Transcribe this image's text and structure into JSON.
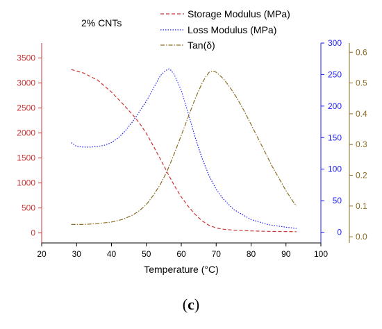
{
  "panel_label_open": "(",
  "panel_label_letter": "c",
  "panel_label_close": ")",
  "colors": {
    "storage": "#cc3333",
    "loss": "#1a1aff",
    "tan": "#8b6b1f",
    "axis": "#000000"
  },
  "chart_data": {
    "type": "line",
    "title": "2% CNTs",
    "xlabel": "Temperature (°C)",
    "xlim": [
      20,
      100
    ],
    "x_ticks": [
      20,
      30,
      40,
      50,
      60,
      70,
      80,
      90,
      100
    ],
    "y_axes": {
      "storage": {
        "ylim": [
          -200,
          3800
        ],
        "ticks": [
          0,
          500,
          1000,
          1500,
          2000,
          2500,
          3000,
          3500
        ]
      },
      "loss": {
        "ylim": [
          -17,
          300
        ],
        "ticks": [
          0,
          50,
          100,
          150,
          200,
          250,
          300
        ]
      },
      "tan": {
        "ylim": [
          -0.02,
          0.63
        ],
        "ticks": [
          "0.0",
          "0.1",
          "0.2",
          "0.3",
          "0.4",
          "0.5",
          "0.6"
        ]
      }
    },
    "series": [
      {
        "name": "Storage Modulus (MPa)",
        "key": "storage",
        "style": "dashed",
        "x": [
          28.5,
          32,
          36,
          40,
          43,
          46,
          48,
          50,
          52,
          54,
          56,
          58,
          60,
          62,
          64,
          66,
          68,
          70,
          72,
          75,
          80,
          85,
          90,
          93
        ],
        "y": [
          3270,
          3200,
          3060,
          2820,
          2600,
          2370,
          2200,
          1990,
          1740,
          1480,
          1210,
          950,
          720,
          530,
          370,
          240,
          150,
          100,
          75,
          55,
          40,
          32,
          28,
          25
        ]
      },
      {
        "name": "Loss Modulus (MPa)",
        "key": "loss",
        "style": "dotted",
        "x": [
          28.5,
          30,
          32,
          34,
          36,
          38,
          40,
          42,
          44,
          46,
          48,
          50,
          52,
          54,
          55,
          56,
          56.5,
          57,
          58,
          60,
          62,
          64,
          66,
          68,
          70,
          72,
          75,
          80,
          85,
          90,
          93
        ],
        "y": [
          142,
          136,
          135,
          135,
          136,
          138,
          142,
          150,
          161,
          175,
          191,
          208,
          228,
          248,
          254,
          258,
          259,
          257,
          250,
          225,
          188,
          150,
          117,
          89,
          68,
          53,
          36,
          20,
          12,
          8,
          6
        ]
      },
      {
        "name": "Tan(δ)",
        "key": "tan",
        "style": "dashdot",
        "x": [
          28.5,
          32,
          36,
          40,
          43,
          46,
          48,
          50,
          52,
          54,
          56,
          58,
          60,
          62,
          64,
          66,
          67,
          68,
          69,
          70,
          72,
          74,
          76,
          78,
          80,
          82,
          84,
          86,
          88,
          90,
          92,
          93
        ],
        "y": [
          0.04,
          0.04,
          0.043,
          0.048,
          0.056,
          0.07,
          0.085,
          0.105,
          0.135,
          0.17,
          0.215,
          0.27,
          0.33,
          0.39,
          0.45,
          0.5,
          0.52,
          0.535,
          0.54,
          0.535,
          0.515,
          0.485,
          0.45,
          0.41,
          0.365,
          0.32,
          0.275,
          0.23,
          0.19,
          0.15,
          0.115,
          0.1
        ]
      }
    ]
  }
}
